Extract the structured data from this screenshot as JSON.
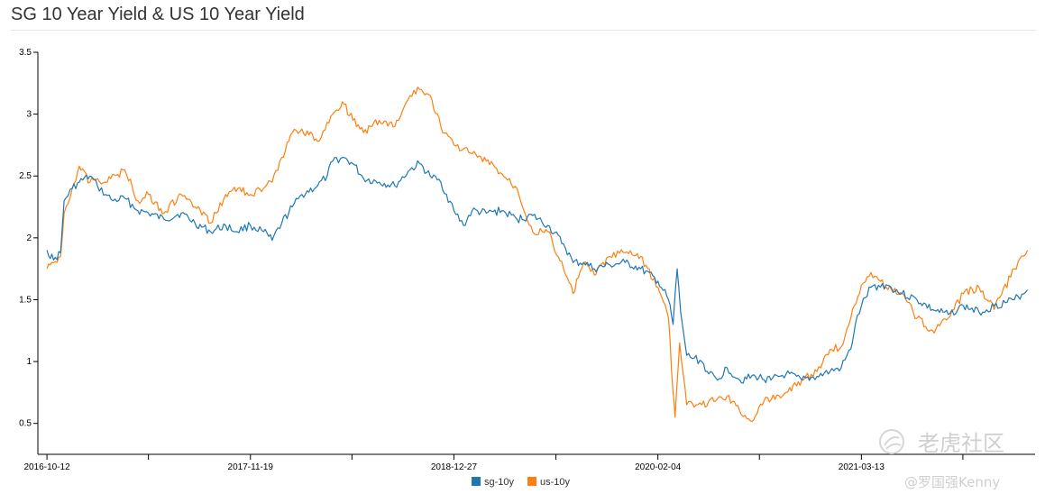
{
  "title": "SG 10 Year Yield & US 10 Year Yield",
  "watermark": {
    "brand": "老虎社区",
    "author": "@罗国强Kenny"
  },
  "colors": {
    "sg": "#1f77b4",
    "us": "#ff7f0e"
  },
  "chart_data": {
    "type": "line",
    "title": "SG 10 Year Yield & US 10 Year Yield",
    "x_type": "date",
    "x_range": [
      "2016-09-24",
      "2022-02-20"
    ],
    "x_ticks": [
      "2016-10-12",
      "2017-11-19",
      "2018-12-27",
      "2020-02-04",
      "2021-03-13"
    ],
    "ylim": [
      0.25,
      3.5
    ],
    "y_ticks": [
      0.5,
      1,
      1.5,
      2,
      2.5,
      3,
      3.5
    ],
    "y_tick_labels": [
      "0.5",
      "1",
      "1.5",
      "2",
      "2.5",
      "3",
      "3.5"
    ],
    "grid": false,
    "legend": "bottom-center",
    "series": [
      {
        "name": "sg-10y",
        "color": "#1f77b4",
        "points": [
          [
            "2016-10-12",
            1.9
          ],
          [
            "2016-10-25",
            1.82
          ],
          [
            "2016-11-08",
            1.88
          ],
          [
            "2016-11-15",
            2.3
          ],
          [
            "2016-12-01",
            2.4
          ],
          [
            "2016-12-15",
            2.45
          ],
          [
            "2017-01-05",
            2.5
          ],
          [
            "2017-01-20",
            2.42
          ],
          [
            "2017-02-05",
            2.35
          ],
          [
            "2017-02-20",
            2.3
          ],
          [
            "2017-03-15",
            2.32
          ],
          [
            "2017-04-10",
            2.22
          ],
          [
            "2017-05-01",
            2.2
          ],
          [
            "2017-06-01",
            2.15
          ],
          [
            "2017-07-05",
            2.2
          ],
          [
            "2017-08-01",
            2.12
          ],
          [
            "2017-09-01",
            2.05
          ],
          [
            "2017-10-01",
            2.1
          ],
          [
            "2017-10-20",
            2.05
          ],
          [
            "2017-11-19",
            2.1
          ],
          [
            "2017-12-15",
            2.05
          ],
          [
            "2018-01-01",
            1.98
          ],
          [
            "2018-01-20",
            2.12
          ],
          [
            "2018-02-10",
            2.25
          ],
          [
            "2018-03-01",
            2.35
          ],
          [
            "2018-04-01",
            2.42
          ],
          [
            "2018-04-20",
            2.5
          ],
          [
            "2018-05-01",
            2.62
          ],
          [
            "2018-05-20",
            2.65
          ],
          [
            "2018-06-10",
            2.6
          ],
          [
            "2018-07-01",
            2.48
          ],
          [
            "2018-08-01",
            2.45
          ],
          [
            "2018-09-01",
            2.42
          ],
          [
            "2018-10-01",
            2.55
          ],
          [
            "2018-10-20",
            2.6
          ],
          [
            "2018-11-10",
            2.5
          ],
          [
            "2018-12-01",
            2.45
          ],
          [
            "2018-12-27",
            2.22
          ],
          [
            "2019-01-15",
            2.1
          ],
          [
            "2019-02-01",
            2.22
          ],
          [
            "2019-03-01",
            2.2
          ],
          [
            "2019-04-01",
            2.22
          ],
          [
            "2019-05-01",
            2.15
          ],
          [
            "2019-06-01",
            2.18
          ],
          [
            "2019-07-01",
            2.1
          ],
          [
            "2019-08-01",
            1.95
          ],
          [
            "2019-08-20",
            1.8
          ],
          [
            "2019-09-10",
            1.8
          ],
          [
            "2019-10-01",
            1.75
          ],
          [
            "2019-11-01",
            1.78
          ],
          [
            "2019-12-01",
            1.8
          ],
          [
            "2020-01-01",
            1.75
          ],
          [
            "2020-02-04",
            1.65
          ],
          [
            "2020-02-25",
            1.5
          ],
          [
            "2020-03-05",
            1.3
          ],
          [
            "2020-03-13",
            1.75
          ],
          [
            "2020-03-20",
            1.4
          ],
          [
            "2020-04-01",
            1.05
          ],
          [
            "2020-05-01",
            1.0
          ],
          [
            "2020-05-15",
            0.9
          ],
          [
            "2020-06-01",
            0.85
          ],
          [
            "2020-06-20",
            0.95
          ],
          [
            "2020-07-15",
            0.85
          ],
          [
            "2020-08-15",
            0.88
          ],
          [
            "2020-09-15",
            0.85
          ],
          [
            "2020-10-15",
            0.9
          ],
          [
            "2020-11-15",
            0.85
          ],
          [
            "2020-12-15",
            0.88
          ],
          [
            "2021-01-10",
            0.92
          ],
          [
            "2021-02-01",
            0.95
          ],
          [
            "2021-02-20",
            1.1
          ],
          [
            "2021-03-01",
            1.3
          ],
          [
            "2021-03-13",
            1.45
          ],
          [
            "2021-04-01",
            1.6
          ],
          [
            "2021-05-01",
            1.62
          ],
          [
            "2021-06-01",
            1.55
          ],
          [
            "2021-07-01",
            1.5
          ],
          [
            "2021-08-01",
            1.42
          ],
          [
            "2021-09-01",
            1.38
          ],
          [
            "2021-10-01",
            1.45
          ],
          [
            "2021-11-01",
            1.4
          ],
          [
            "2021-12-01",
            1.45
          ],
          [
            "2022-01-10",
            1.5
          ],
          [
            "2022-02-05",
            1.58
          ]
        ]
      },
      {
        "name": "us-10y",
        "color": "#ff7f0e",
        "points": [
          [
            "2016-10-12",
            1.75
          ],
          [
            "2016-10-25",
            1.8
          ],
          [
            "2016-11-08",
            1.85
          ],
          [
            "2016-11-15",
            2.2
          ],
          [
            "2016-12-01",
            2.4
          ],
          [
            "2016-12-15",
            2.58
          ],
          [
            "2017-01-05",
            2.45
          ],
          [
            "2017-01-20",
            2.48
          ],
          [
            "2017-02-05",
            2.45
          ],
          [
            "2017-03-15",
            2.55
          ],
          [
            "2017-04-10",
            2.3
          ],
          [
            "2017-05-01",
            2.35
          ],
          [
            "2017-06-01",
            2.2
          ],
          [
            "2017-07-05",
            2.35
          ],
          [
            "2017-08-01",
            2.25
          ],
          [
            "2017-09-01",
            2.12
          ],
          [
            "2017-10-01",
            2.35
          ],
          [
            "2017-10-25",
            2.4
          ],
          [
            "2017-11-19",
            2.35
          ],
          [
            "2017-12-15",
            2.4
          ],
          [
            "2018-01-01",
            2.45
          ],
          [
            "2018-01-20",
            2.65
          ],
          [
            "2018-02-10",
            2.85
          ],
          [
            "2018-03-01",
            2.88
          ],
          [
            "2018-04-01",
            2.78
          ],
          [
            "2018-05-01",
            3.0
          ],
          [
            "2018-05-20",
            3.1
          ],
          [
            "2018-06-10",
            2.95
          ],
          [
            "2018-07-01",
            2.85
          ],
          [
            "2018-08-01",
            2.95
          ],
          [
            "2018-09-01",
            2.9
          ],
          [
            "2018-10-01",
            3.15
          ],
          [
            "2018-10-20",
            3.2
          ],
          [
            "2018-11-10",
            3.15
          ],
          [
            "2018-12-01",
            2.9
          ],
          [
            "2018-12-27",
            2.75
          ],
          [
            "2019-01-15",
            2.72
          ],
          [
            "2019-02-01",
            2.68
          ],
          [
            "2019-03-01",
            2.62
          ],
          [
            "2019-04-01",
            2.52
          ],
          [
            "2019-05-01",
            2.4
          ],
          [
            "2019-06-01",
            2.05
          ],
          [
            "2019-07-01",
            2.05
          ],
          [
            "2019-08-01",
            1.75
          ],
          [
            "2019-08-20",
            1.55
          ],
          [
            "2019-09-10",
            1.8
          ],
          [
            "2019-10-01",
            1.7
          ],
          [
            "2019-11-01",
            1.85
          ],
          [
            "2019-12-01",
            1.88
          ],
          [
            "2020-01-01",
            1.85
          ],
          [
            "2020-02-04",
            1.6
          ],
          [
            "2020-02-25",
            1.35
          ],
          [
            "2020-03-05",
            0.75
          ],
          [
            "2020-03-09",
            0.55
          ],
          [
            "2020-03-18",
            1.15
          ],
          [
            "2020-04-01",
            0.65
          ],
          [
            "2020-05-01",
            0.65
          ],
          [
            "2020-06-01",
            0.7
          ],
          [
            "2020-06-20",
            0.72
          ],
          [
            "2020-07-15",
            0.6
          ],
          [
            "2020-08-05",
            0.52
          ],
          [
            "2020-09-01",
            0.68
          ],
          [
            "2020-10-15",
            0.75
          ],
          [
            "2020-11-15",
            0.85
          ],
          [
            "2020-12-15",
            0.92
          ],
          [
            "2021-01-10",
            1.1
          ],
          [
            "2021-02-01",
            1.12
          ],
          [
            "2021-02-20",
            1.35
          ],
          [
            "2021-03-13",
            1.62
          ],
          [
            "2021-04-01",
            1.72
          ],
          [
            "2021-05-01",
            1.6
          ],
          [
            "2021-06-01",
            1.55
          ],
          [
            "2021-07-01",
            1.35
          ],
          [
            "2021-08-01",
            1.25
          ],
          [
            "2021-09-01",
            1.35
          ],
          [
            "2021-10-01",
            1.55
          ],
          [
            "2021-11-01",
            1.6
          ],
          [
            "2021-12-01",
            1.42
          ],
          [
            "2022-01-10",
            1.75
          ],
          [
            "2022-02-05",
            1.9
          ]
        ]
      }
    ]
  }
}
